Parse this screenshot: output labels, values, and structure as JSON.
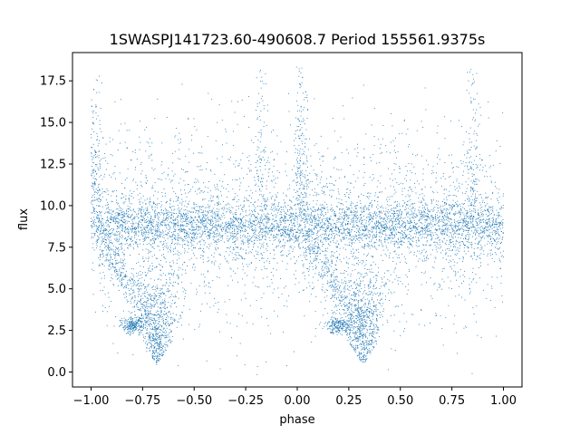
{
  "chart_data": {
    "type": "scatter",
    "title": "1SWASPJ141723.60-490608.7 Period 155561.9375s",
    "xlabel": "phase",
    "ylabel": "flux",
    "xlim": [
      -1.09,
      1.09
    ],
    "ylim": [
      -0.9,
      19.2
    ],
    "x_ticks": [
      -1.0,
      -0.75,
      -0.5,
      -0.25,
      0.0,
      0.25,
      0.5,
      0.75,
      1.0
    ],
    "x_tick_labels": [
      "−1.00",
      "−0.75",
      "−0.50",
      "−0.25",
      "0.00",
      "0.25",
      "0.50",
      "0.75",
      "1.00"
    ],
    "y_ticks": [
      0.0,
      2.5,
      5.0,
      7.5,
      10.0,
      12.5,
      15.0,
      17.5
    ],
    "y_tick_labels": [
      "0.0",
      "2.5",
      "5.0",
      "7.5",
      "10.0",
      "12.5",
      "15.0",
      "17.5"
    ],
    "marker_color": "#1f77b4",
    "grid": false,
    "series": [
      {
        "description_points": [
          {
            "phase": -1.0,
            "flux": 8.8
          },
          {
            "phase": -0.98,
            "flux": 17.8
          },
          {
            "phase": -0.8,
            "flux": 2.7
          },
          {
            "phase": -0.68,
            "flux": 0.5
          },
          {
            "phase": -0.5,
            "flux": 8.8
          },
          {
            "phase": -0.17,
            "flux": 18.3
          },
          {
            "phase": 0.02,
            "flux": 18.0
          },
          {
            "phase": 0.2,
            "flux": 2.7
          },
          {
            "phase": 0.32,
            "flux": 0.5
          },
          {
            "phase": 0.5,
            "flux": 8.8
          },
          {
            "phase": 0.85,
            "flux": 18.3
          },
          {
            "phase": 1.0,
            "flux": 8.8
          }
        ]
      }
    ]
  }
}
